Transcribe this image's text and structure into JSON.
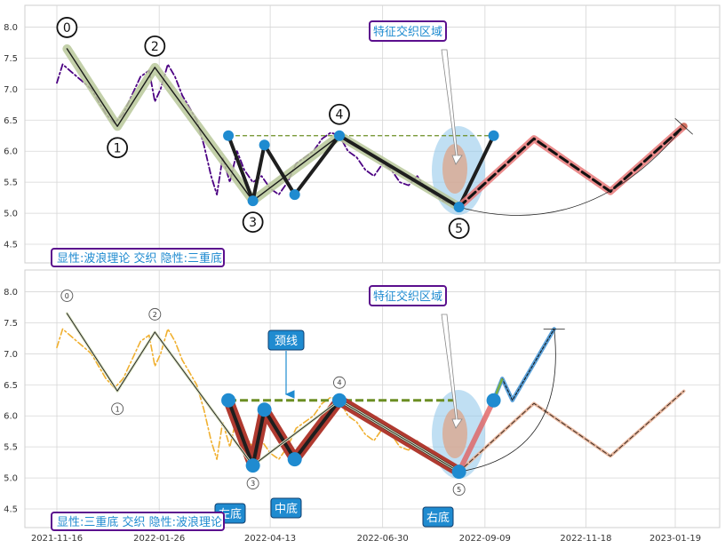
{
  "chart_data": [
    {
      "type": "line",
      "panel": "top",
      "ylim": [
        4.2,
        8.35
      ],
      "yticks": [
        "4.5",
        "5.0",
        "5.5",
        "6.0",
        "6.5",
        "7.0",
        "7.5",
        "8.0"
      ],
      "grid": true,
      "price_series": {
        "style": "dash-dot",
        "color": "#4b0082",
        "x": [
          "2021-11-16",
          "2021-11-20",
          "2021-11-25",
          "2021-11-30",
          "2021-12-05",
          "2021-12-10",
          "2021-12-15",
          "2021-12-20",
          "2021-12-26",
          "2022-01-01",
          "2022-01-07",
          "2022-01-13",
          "2022-01-19",
          "2022-01-23",
          "2022-01-27",
          "2022-02-01",
          "2022-02-06",
          "2022-02-11",
          "2022-02-16",
          "2022-02-21",
          "2022-02-26",
          "2022-03-03",
          "2022-03-07",
          "2022-03-11",
          "2022-03-16",
          "2022-03-21",
          "2022-03-26",
          "2022-04-01",
          "2022-04-07",
          "2022-04-13",
          "2022-04-19",
          "2022-04-25",
          "2022-05-01",
          "2022-05-07",
          "2022-05-13",
          "2022-05-19",
          "2022-05-25",
          "2022-05-31",
          "2022-06-06",
          "2022-06-12",
          "2022-06-18",
          "2022-06-24",
          "2022-06-30",
          "2022-07-06",
          "2022-07-12",
          "2022-07-18",
          "2022-07-24",
          "2022-07-30",
          "2022-08-05",
          "2022-08-11",
          "2022-08-17",
          "2022-08-22"
        ],
        "y": [
          7.1,
          7.4,
          7.3,
          7.2,
          7.1,
          7.0,
          6.8,
          6.6,
          6.45,
          6.6,
          6.9,
          7.2,
          7.3,
          6.8,
          7.0,
          7.4,
          7.2,
          6.9,
          6.7,
          6.5,
          6.1,
          5.6,
          5.3,
          5.9,
          5.5,
          6.0,
          5.7,
          5.5,
          5.6,
          5.4,
          5.3,
          5.5,
          5.8,
          5.9,
          6.0,
          6.2,
          6.3,
          6.25,
          6.0,
          5.9,
          5.7,
          5.6,
          5.8,
          5.7,
          5.5,
          5.45,
          5.6,
          5.4,
          5.3,
          5.2,
          5.15,
          5.1
        ]
      },
      "wave_points": {
        "labels": [
          "0",
          "1",
          "2",
          "3",
          "4",
          "5"
        ],
        "x": [
          "2021-11-23",
          "2021-12-28",
          "2022-01-23",
          "2022-04-01",
          "2022-05-31",
          "2022-08-22"
        ],
        "y": [
          7.65,
          6.4,
          7.35,
          5.2,
          6.25,
          5.1
        ]
      },
      "triple_bottom_points": {
        "x": [
          "2022-03-15",
          "2022-04-01",
          "2022-04-09",
          "2022-04-30",
          "2022-05-31",
          "2022-08-22",
          "2022-09-15"
        ],
        "y": [
          6.25,
          5.2,
          6.1,
          5.3,
          6.25,
          5.1,
          6.25
        ]
      },
      "neckline": {
        "y": 6.25,
        "x": [
          "2022-03-15",
          "2022-09-15"
        ]
      },
      "projection": {
        "x": [
          "2022-08-22",
          "2022-10-13",
          "2022-12-05",
          "2023-01-25"
        ],
        "y": [
          5.1,
          6.2,
          5.35,
          6.4
        ]
      },
      "annotation": "特征交织区域",
      "label": "显性:波浪理论 交织 隐性:三重底"
    },
    {
      "type": "line",
      "panel": "bottom",
      "ylim": [
        4.2,
        8.35
      ],
      "yticks": [
        "4.5",
        "5.0",
        "5.5",
        "6.0",
        "6.5",
        "7.0",
        "7.5",
        "8.0"
      ],
      "xticks": [
        "2021-11-16",
        "2022-01-26",
        "2022-04-13",
        "2022-06-30",
        "2022-09-09",
        "2022-11-18",
        "2023-01-19"
      ],
      "grid": true,
      "price_series": {
        "style": "dash-dot",
        "color": "#f0b030"
      },
      "wave_points": {
        "labels": [
          "0",
          "1",
          "2",
          "3",
          "4",
          "5"
        ],
        "x": [
          "2021-11-23",
          "2021-12-28",
          "2022-01-23",
          "2022-04-01",
          "2022-05-31",
          "2022-08-22"
        ],
        "y": [
          7.65,
          6.4,
          7.35,
          5.2,
          6.25,
          5.1
        ]
      },
      "triple_bottom_points": {
        "x": [
          "2022-03-15",
          "2022-04-01",
          "2022-04-09",
          "2022-04-30",
          "2022-05-31",
          "2022-08-22",
          "2022-09-15"
        ],
        "y": [
          6.25,
          5.2,
          6.1,
          5.3,
          6.25,
          5.1,
          6.25
        ]
      },
      "neckline": {
        "y": 6.25,
        "x": [
          "2022-03-15",
          "2022-08-22"
        ]
      },
      "breakout": {
        "x": [
          "2022-09-15",
          "2022-09-21",
          "2022-09-28",
          "2022-10-27"
        ],
        "y": [
          6.25,
          6.6,
          6.25,
          7.4
        ]
      },
      "projection": {
        "x": [
          "2022-08-22",
          "2022-10-13",
          "2022-12-05",
          "2023-01-25"
        ],
        "y": [
          5.1,
          6.2,
          5.35,
          6.4
        ]
      },
      "annotations": [
        "特征交织区域",
        "颈线",
        "左底",
        "中底",
        "右底"
      ],
      "label": "显性:三重底 交织 隐性:波浪理论"
    }
  ]
}
